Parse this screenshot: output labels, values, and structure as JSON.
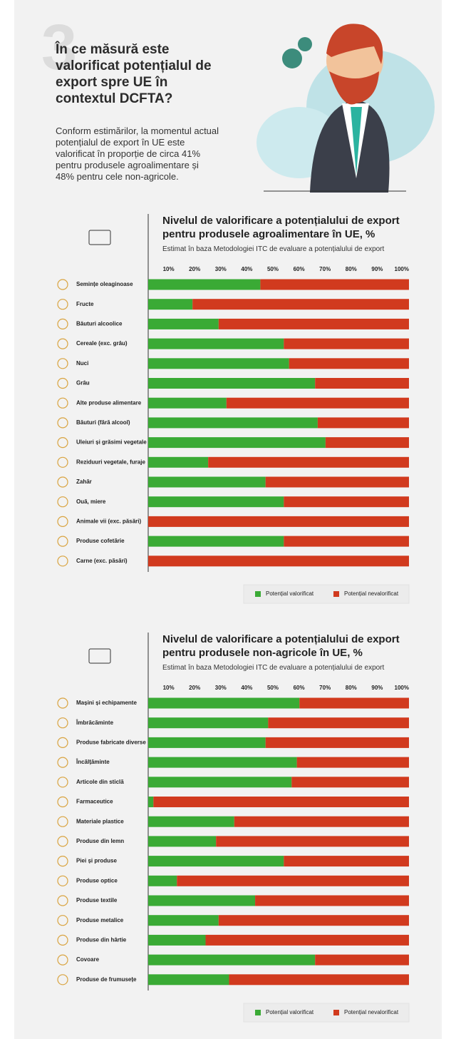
{
  "header": {
    "number": "3",
    "title": "În ce măsură este valorificat potențialul de export spre UE în contextul DCFTA?",
    "body": "Conform estimărilor, la momentul actual potențialul de export în UE este valorificat în proporție de circa 41% pentru produsele agroalimentare și 48% pentru cele non-agricole."
  },
  "chart_data": [
    {
      "type": "stacked-barh",
      "title": "Nivelul de valorificare a potențialului de export pentru produsele agroalimentare în UE, %",
      "subtitle": "Estimat în baza Metodologiei ITC de evaluare a potențialului de export",
      "categories": [
        "Semințe oleaginoase",
        "Fructe",
        "Băuturi alcoolice",
        "Cereale (exc. grâu)",
        "Nuci",
        "Grâu",
        "Alte produse alimentare",
        "Băuturi (fără alcool)",
        "Uleiuri și grăsimi vegetale",
        "Reziduuri vegetale, furaje",
        "Zahăr",
        "Ouă, miere",
        "Animale vii (exc. păsări)",
        "Produse cofetărie",
        "Carne (exc. păsări)"
      ],
      "series": [
        {
          "name": "Potențial valorificat",
          "color": "#3aaa35",
          "values": [
            43,
            17,
            27,
            52,
            54,
            64,
            30,
            65,
            68,
            23,
            45,
            52,
            0,
            52,
            0
          ]
        },
        {
          "name": "Potențial nevalorificat",
          "color": "#d13a1e",
          "values": [
            57,
            83,
            73,
            48,
            46,
            36,
            70,
            35,
            32,
            77,
            55,
            48,
            100,
            48,
            100
          ]
        }
      ],
      "xlim": [
        0,
        100
      ],
      "xticks": [
        {
          "value": 10,
          "label": "10%"
        },
        {
          "value": 20,
          "label": "20%"
        },
        {
          "value": 30,
          "label": "30%"
        },
        {
          "value": 40,
          "label": "40%"
        },
        {
          "value": 50,
          "label": "50%"
        },
        {
          "value": 60,
          "label": "60%"
        },
        {
          "value": 70,
          "label": "70%"
        },
        {
          "value": 80,
          "label": "80%"
        },
        {
          "value": 90,
          "label": "90%"
        },
        {
          "value": 100,
          "label": "100%"
        }
      ]
    },
    {
      "type": "stacked-barh",
      "title": "Nivelul de valorificare a potențialului de export pentru produsele non-agricole în UE, %",
      "subtitle": "Estimat în baza Metodologiei ITC de evaluare a potențialului de export",
      "categories": [
        "Mașini și echipamente",
        "Îmbrăcăminte",
        "Produse fabricate diverse",
        "Încălțăminte",
        "Articole din sticlă",
        "Farmaceutice",
        "Materiale plastice",
        "Produse din lemn",
        "Piei și produse",
        "Produse optice",
        "Produse textile",
        "Produse metalice",
        "Produse din hârtie",
        "Covoare",
        "Produse de frumusețe"
      ],
      "series": [
        {
          "name": "Potențial valorificat",
          "color": "#3aaa35",
          "values": [
            58,
            46,
            45,
            57,
            55,
            2,
            33,
            26,
            52,
            11,
            41,
            27,
            22,
            64,
            31
          ]
        },
        {
          "name": "Potențial nevalorificat",
          "color": "#d13a1e",
          "values": [
            42,
            54,
            55,
            43,
            45,
            98,
            67,
            74,
            48,
            89,
            59,
            73,
            78,
            36,
            69
          ]
        }
      ],
      "xlim": [
        0,
        100
      ],
      "xticks": [
        {
          "value": 10,
          "label": "10%"
        },
        {
          "value": 20,
          "label": "20%"
        },
        {
          "value": 30,
          "label": "30%"
        },
        {
          "value": 40,
          "label": "40%"
        },
        {
          "value": 50,
          "label": "50%"
        },
        {
          "value": 60,
          "label": "60%"
        },
        {
          "value": 70,
          "label": "70%"
        },
        {
          "value": 80,
          "label": "80%"
        },
        {
          "value": 90,
          "label": "90%"
        },
        {
          "value": 100,
          "label": "100%"
        }
      ]
    }
  ]
}
